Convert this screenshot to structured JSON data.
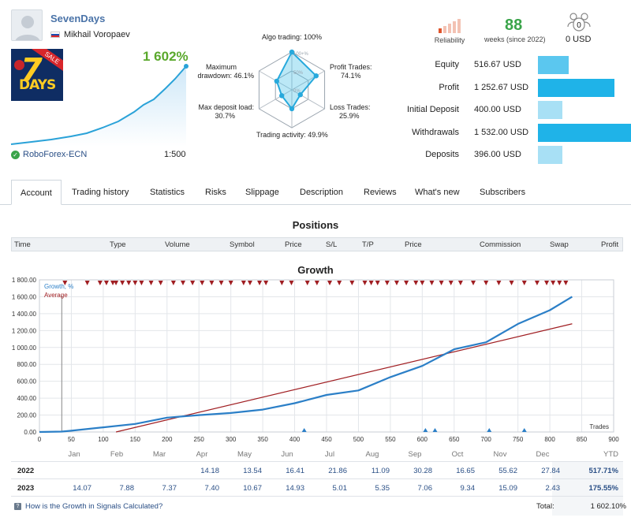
{
  "signal": {
    "name": "SevenDays",
    "author": "Mikhail Voropaev",
    "growth_label": "1 602%",
    "broker": "RoboForex-ECN",
    "leverage": "1:500",
    "logo_text": "DAYS",
    "logo_digit": "7",
    "logo_ribbon": "SALE"
  },
  "radar": {
    "algo_trading": "Algo trading: 100%",
    "profit_trades_title": "Profit Trades:",
    "profit_trades_value": "74.1%",
    "loss_trades_title": "Loss Trades:",
    "loss_trades_value": "25.9%",
    "trading_activity": "Trading activity: 49.9%",
    "max_deposit_title": "Max deposit load:",
    "max_deposit_value": "30.7%",
    "max_drawdown_title": "Maximum",
    "max_drawdown_value": "drawdown: 46.1%",
    "scale_100": "100+%",
    "scale_50": "50%",
    "scale_0": "0%",
    "levels": {
      "algo": 1.0,
      "profit": 0.741,
      "loss": 0.259,
      "activity": 0.499,
      "deposit": 0.307,
      "drawdown": 0.461
    }
  },
  "summary": {
    "reliability_label": "Reliability",
    "weeks_value": "88",
    "weeks_label": "weeks (since 2022)",
    "subscribers_count": "0",
    "subscription_price": "0 USD"
  },
  "metrics": [
    {
      "label": "Equity",
      "value": "516.67 USD",
      "fraction": 0.33,
      "color": "#5bc7ef"
    },
    {
      "label": "Profit",
      "value": "1 252.67 USD",
      "fraction": 0.82,
      "color": "#1fb3e8"
    },
    {
      "label": "Initial Deposit",
      "value": "400.00 USD",
      "fraction": 0.26,
      "color": "#a8e0f5"
    },
    {
      "label": "Withdrawals",
      "value": "1 532.00 USD",
      "fraction": 1.0,
      "color": "#1fb3e8"
    },
    {
      "label": "Deposits",
      "value": "396.00 USD",
      "fraction": 0.26,
      "color": "#a8e0f5"
    }
  ],
  "tabs": [
    "Account",
    "Trading history",
    "Statistics",
    "Risks",
    "Slippage",
    "Description",
    "Reviews",
    "What's new",
    "Subscribers"
  ],
  "positions": {
    "title": "Positions",
    "columns": [
      "Time",
      "Type",
      "Volume",
      "Symbol",
      "Price",
      "S/L",
      "T/P",
      "Price",
      "Commission",
      "Swap",
      "Profit"
    ]
  },
  "growth": {
    "title": "Growth",
    "legend_growth": "Growth, %",
    "legend_average": "Average",
    "x_axis_title": "Trades",
    "colors": {
      "growth": "#2b7fc7",
      "average": "#a01e22",
      "markers": "#a01e22"
    }
  },
  "chart_data": {
    "type": "line",
    "title": "Growth",
    "xlabel": "Trades",
    "ylabel": "",
    "xlim": [
      0,
      900
    ],
    "ylim": [
      0,
      1800
    ],
    "x_ticks": [
      0,
      50,
      100,
      150,
      200,
      250,
      300,
      350,
      400,
      450,
      500,
      550,
      600,
      650,
      700,
      750,
      800,
      850,
      900
    ],
    "y_ticks": [
      "0.00",
      "200.00",
      "400.00",
      "600.00",
      "800.00",
      "1 000.00",
      "1 200.00",
      "1 400.00",
      "1 600.00",
      "1 800.00"
    ],
    "series": [
      {
        "name": "Growth, %",
        "x": [
          0,
          35,
          50,
          100,
          150,
          200,
          250,
          300,
          350,
          400,
          450,
          500,
          550,
          600,
          650,
          700,
          750,
          800,
          835
        ],
        "y": [
          0,
          5,
          15,
          55,
          95,
          170,
          200,
          225,
          265,
          340,
          420,
          510,
          630,
          800,
          960,
          1080,
          1260,
          1460,
          1600
        ]
      },
      {
        "name": "Average",
        "x": [
          120,
          835
        ],
        "y": [
          0,
          1280
        ]
      }
    ],
    "top_markers_x": [
      40,
      75,
      95,
      105,
      115,
      120,
      130,
      140,
      150,
      160,
      175,
      190,
      210,
      225,
      240,
      255,
      270,
      285,
      300,
      320,
      330,
      345,
      355,
      380,
      395,
      420,
      435,
      455,
      470,
      490,
      510,
      520,
      530,
      545,
      560,
      575,
      590,
      600,
      615,
      630,
      645,
      660,
      680,
      700,
      720,
      740,
      760,
      780,
      795,
      805,
      815,
      825
    ],
    "bottom_markers_x": [
      415,
      605,
      620,
      705,
      760
    ]
  },
  "yearly": {
    "months": [
      "Jan",
      "Feb",
      "Mar",
      "Apr",
      "May",
      "Jun",
      "Jul",
      "Aug",
      "Sep",
      "Oct",
      "Nov",
      "Dec"
    ],
    "ytd_label": "YTD",
    "rows": [
      {
        "year": "2022",
        "values": [
          "",
          "",
          "",
          "14.18",
          "13.54",
          "16.41",
          "21.86",
          "11.09",
          "30.28",
          "16.65",
          "55.62",
          "27.84"
        ],
        "ytd": "517.71%"
      },
      {
        "year": "2023",
        "values": [
          "14.07",
          "7.88",
          "7.37",
          "7.40",
          "10.67",
          "14.93",
          "5.01",
          "5.35",
          "7.06",
          "9.34",
          "15.09",
          "2.43"
        ],
        "ytd": "175.55%"
      }
    ],
    "how_link": "How is the Growth in Signals Calculated?",
    "total_label": "Total:",
    "total_value": "1 602.10%"
  }
}
